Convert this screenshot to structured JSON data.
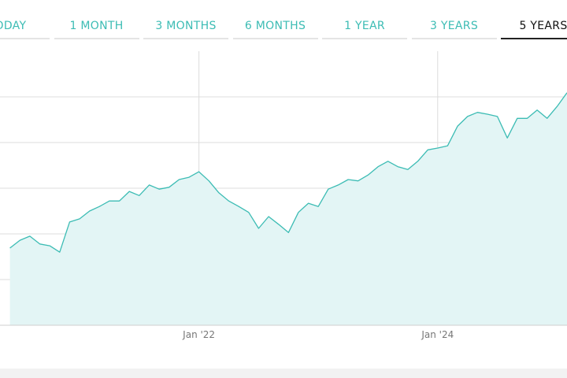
{
  "tabs": {
    "labels": [
      "TODAY",
      "1 MONTH",
      "3 MONTHS",
      "6 MONTHS",
      "1 YEAR",
      "3 YEARS",
      "5 YEARS"
    ],
    "active_tab": 6
  },
  "chart_data": {
    "type": "area",
    "color": "#3cbcb4",
    "fill": "#e3f5f5",
    "grid": true,
    "x": [
      "2020-06",
      "2020-07",
      "2020-08",
      "2020-09",
      "2020-10",
      "2020-11",
      "2020-12",
      "2021-01",
      "2021-02",
      "2021-03",
      "2021-04",
      "2021-05",
      "2021-06",
      "2021-07",
      "2021-08",
      "2021-09",
      "2021-10",
      "2021-11",
      "2021-12",
      "2022-01",
      "2022-02",
      "2022-03",
      "2022-04",
      "2022-05",
      "2022-06",
      "2022-07",
      "2022-08",
      "2022-09",
      "2022-10",
      "2022-11",
      "2022-12",
      "2023-01",
      "2023-02",
      "2023-03",
      "2023-04",
      "2023-05",
      "2023-06",
      "2023-07",
      "2023-08",
      "2023-09",
      "2023-10",
      "2023-11",
      "2023-12",
      "2024-01",
      "2024-02",
      "2024-03",
      "2024-04",
      "2024-05",
      "2024-06",
      "2024-07",
      "2024-08",
      "2024-09",
      "2024-10",
      "2024-11",
      "2024-12",
      "2025-01",
      "2025-02"
    ],
    "values": [
      1.69,
      1.86,
      1.95,
      1.78,
      1.74,
      1.6,
      2.26,
      2.33,
      2.5,
      2.6,
      2.72,
      2.72,
      2.93,
      2.84,
      3.07,
      2.98,
      3.02,
      3.19,
      3.24,
      3.36,
      3.16,
      2.9,
      2.72,
      2.6,
      2.47,
      2.12,
      2.38,
      2.21,
      2.03,
      2.47,
      2.67,
      2.6,
      2.98,
      3.07,
      3.19,
      3.16,
      3.29,
      3.47,
      3.59,
      3.47,
      3.41,
      3.59,
      3.84,
      3.88,
      3.93,
      4.36,
      4.57,
      4.66,
      4.62,
      4.57,
      4.1,
      4.53,
      4.53,
      4.71,
      4.53,
      4.79,
      5.09
    ],
    "xlim": [
      "2020-05",
      "2025-02"
    ],
    "xticks": [
      {
        "value": "2022-01",
        "label": "Jan '22"
      },
      {
        "value": "2024-01",
        "label": "Jan '24"
      }
    ],
    "ylim": [
      0,
      6
    ],
    "ygrid": [
      1,
      2,
      3,
      4,
      5
    ]
  }
}
